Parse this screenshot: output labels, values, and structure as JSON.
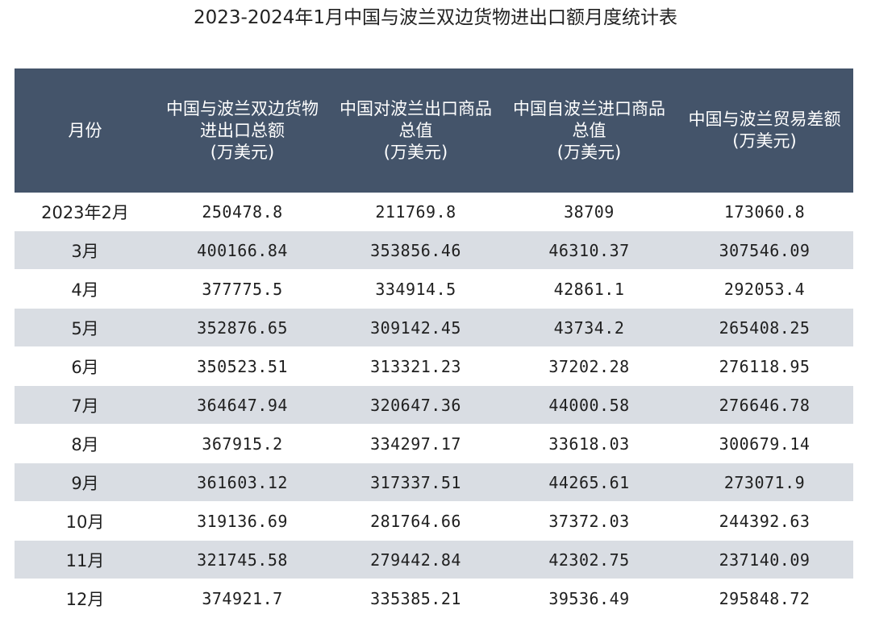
{
  "chart_data": {
    "type": "table",
    "title": "2023-2024年1月中国与波兰双边货物进出口额月度统计表",
    "columns": [
      {
        "label": "月份",
        "unit": ""
      },
      {
        "label": "中国与波兰双边货物进出口总额",
        "unit": "(万美元)"
      },
      {
        "label": "中国对波兰出口商品总值",
        "unit": "(万美元)"
      },
      {
        "label": "中国自波兰进口商品总值",
        "unit": "(万美元)"
      },
      {
        "label": "中国与波兰贸易差额",
        "unit": "(万美元)"
      }
    ],
    "rows": [
      [
        "2023年2月",
        "250478.8",
        "211769.8",
        "38709",
        "173060.8"
      ],
      [
        "3月",
        "400166.84",
        "353856.46",
        "46310.37",
        "307546.09"
      ],
      [
        "4月",
        "377775.5",
        "334914.5",
        "42861.1",
        "292053.4"
      ],
      [
        "5月",
        "352876.65",
        "309142.45",
        "43734.2",
        "265408.25"
      ],
      [
        "6月",
        "350523.51",
        "313321.23",
        "37202.28",
        "276118.95"
      ],
      [
        "7月",
        "364647.94",
        "320647.36",
        "44000.58",
        "276646.78"
      ],
      [
        "8月",
        "367915.2",
        "334297.17",
        "33618.03",
        "300679.14"
      ],
      [
        "9月",
        "361603.12",
        "317337.51",
        "44265.61",
        "273071.9"
      ],
      [
        "10月",
        "319136.69",
        "281764.66",
        "37372.03",
        "244392.63"
      ],
      [
        "11月",
        "321745.58",
        "279442.84",
        "42302.75",
        "237140.09"
      ],
      [
        "12月",
        "374921.7",
        "335385.21",
        "39536.49",
        "295848.72"
      ]
    ]
  },
  "colors": {
    "header_bg": "#44546a",
    "header_text": "#ffffff",
    "stripe": "#d9dde3"
  }
}
